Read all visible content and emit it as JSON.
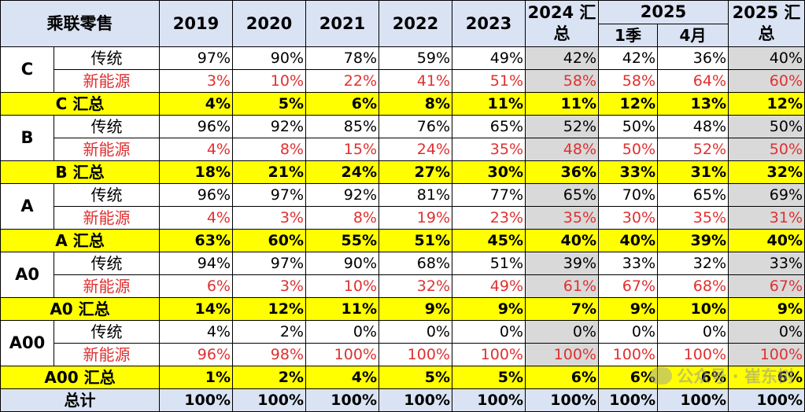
{
  "header": {
    "corner": "乘联零售",
    "years": [
      "2019",
      "2020",
      "2021",
      "2022",
      "2023"
    ],
    "y2024": "2024 汇总",
    "y2025": "2025",
    "q1": "1季",
    "apr": "4月",
    "y2025_total": "2025 汇总"
  },
  "segments": [
    {
      "name": "C",
      "rows": [
        {
          "label": "传统",
          "kind": "ice",
          "values": [
            "97%",
            "90%",
            "78%",
            "59%",
            "49%",
            "42%",
            "42%",
            "36%",
            "40%"
          ]
        },
        {
          "label": "新能源",
          "kind": "ev",
          "values": [
            "3%",
            "10%",
            "22%",
            "41%",
            "51%",
            "58%",
            "58%",
            "64%",
            "60%"
          ]
        }
      ],
      "total_label": "C 汇总",
      "total_values": [
        "4%",
        "5%",
        "6%",
        "8%",
        "11%",
        "11%",
        "12%",
        "13%",
        "12%"
      ]
    },
    {
      "name": "B",
      "rows": [
        {
          "label": "传统",
          "kind": "ice",
          "values": [
            "96%",
            "92%",
            "85%",
            "76%",
            "65%",
            "52%",
            "50%",
            "48%",
            "50%"
          ]
        },
        {
          "label": "新能源",
          "kind": "ev",
          "values": [
            "4%",
            "8%",
            "15%",
            "24%",
            "35%",
            "48%",
            "50%",
            "52%",
            "50%"
          ]
        }
      ],
      "total_label": "B 汇总",
      "total_values": [
        "18%",
        "21%",
        "24%",
        "27%",
        "30%",
        "36%",
        "33%",
        "31%",
        "32%"
      ]
    },
    {
      "name": "A",
      "rows": [
        {
          "label": "传统",
          "kind": "ice",
          "values": [
            "96%",
            "97%",
            "92%",
            "81%",
            "77%",
            "65%",
            "70%",
            "65%",
            "69%"
          ]
        },
        {
          "label": "新能源",
          "kind": "ev",
          "values": [
            "4%",
            "3%",
            "8%",
            "19%",
            "23%",
            "35%",
            "30%",
            "35%",
            "31%"
          ]
        }
      ],
      "total_label": "A 汇总",
      "total_values": [
        "63%",
        "60%",
        "55%",
        "51%",
        "45%",
        "40%",
        "40%",
        "39%",
        "40%"
      ]
    },
    {
      "name": "A0",
      "rows": [
        {
          "label": "传统",
          "kind": "ice",
          "values": [
            "94%",
            "97%",
            "90%",
            "68%",
            "51%",
            "39%",
            "33%",
            "32%",
            "33%"
          ]
        },
        {
          "label": "新能源",
          "kind": "ev",
          "values": [
            "6%",
            "3%",
            "10%",
            "32%",
            "49%",
            "61%",
            "67%",
            "68%",
            "67%"
          ]
        }
      ],
      "total_label": "A0 汇总",
      "total_values": [
        "14%",
        "12%",
        "11%",
        "9%",
        "9%",
        "7%",
        "9%",
        "10%",
        "9%"
      ]
    },
    {
      "name": "A00",
      "rows": [
        {
          "label": "传统",
          "kind": "ice",
          "values": [
            "4%",
            "2%",
            "0%",
            "0%",
            "0%",
            "0%",
            "0%",
            "0%",
            "0%"
          ]
        },
        {
          "label": "新能源",
          "kind": "ev",
          "values": [
            "96%",
            "98%",
            "100%",
            "100%",
            "100%",
            "100%",
            "100%",
            "100%",
            "100%"
          ]
        }
      ],
      "total_label": "A00 汇总",
      "total_values": [
        "1%",
        "2%",
        "4%",
        "5%",
        "5%",
        "6%",
        "6%",
        "6%",
        "6%"
      ]
    }
  ],
  "grand_total": {
    "label": "总计",
    "values": [
      "100%",
      "100%",
      "100%",
      "100%",
      "100%",
      "100%",
      "100%",
      "100%",
      "100%"
    ]
  },
  "watermark": {
    "text": "公众号 · 崔东树",
    "icon": "wechat-icon"
  },
  "colors": {
    "header_bg": "#dae3f3",
    "total_bg": "#ffff00",
    "gray_bg": "#d9d9d9",
    "ev_text": "#e03030"
  }
}
